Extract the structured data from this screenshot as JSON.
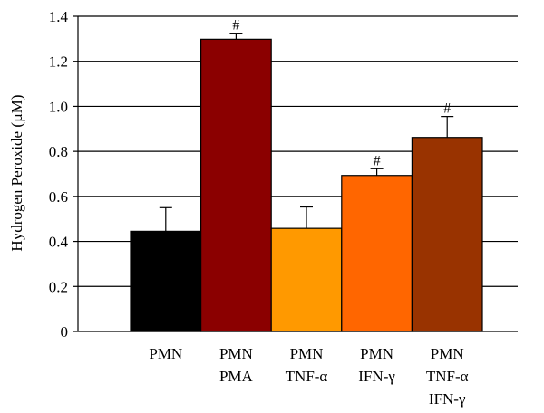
{
  "chart_data": {
    "type": "bar",
    "title": "",
    "xlabel": "",
    "ylabel": "Hydrogen Peroxide (µM)",
    "ylim": [
      0,
      1.4
    ],
    "yticks": [
      "0",
      "0.2",
      "0.4",
      "0.6",
      "0.8",
      "1.0",
      "1.2",
      "1.4"
    ],
    "grid": "horizontal",
    "categories": [
      [
        "PMN"
      ],
      [
        "PMN",
        "PMA"
      ],
      [
        "PMN",
        "TNF-α"
      ],
      [
        "PMN",
        "IFN-γ"
      ],
      [
        "PMN",
        "TNF-α",
        "IFN-γ"
      ]
    ],
    "values": [
      0.445,
      1.298,
      0.458,
      0.693,
      0.862
    ],
    "errors": [
      0.105,
      0.027,
      0.095,
      0.03,
      0.093
    ],
    "significance": [
      "",
      "#",
      "",
      "#",
      "#"
    ],
    "colors": [
      "#000000",
      "#8b0000",
      "#ff9900",
      "#ff6600",
      "#993300"
    ]
  }
}
